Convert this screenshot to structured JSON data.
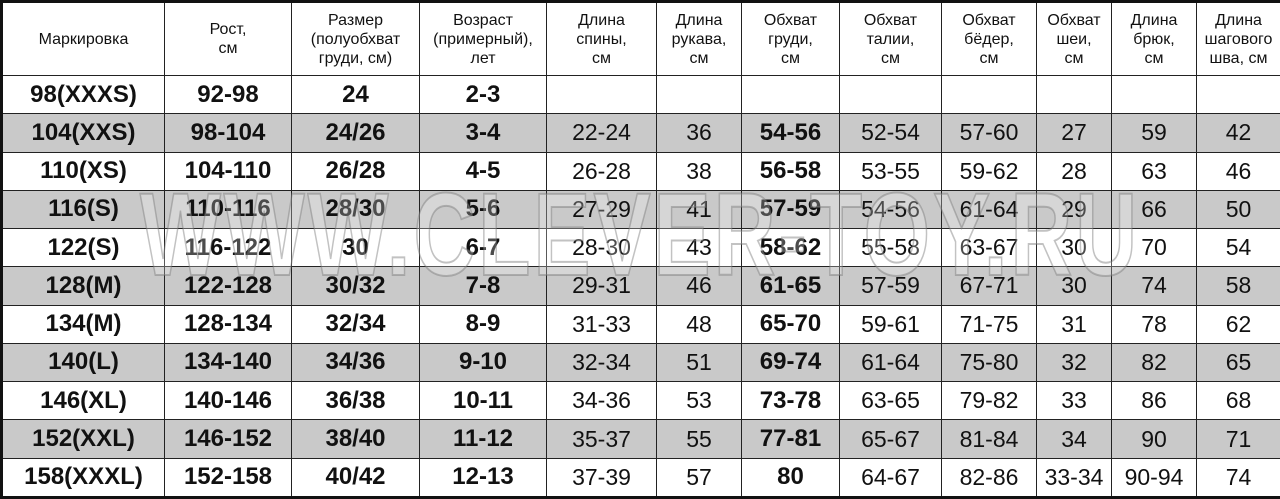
{
  "headers": [
    "Маркировка",
    "Рост,\nсм",
    "Размер\n(полуобхват\nгруди, см)",
    "Возраст\n(примерный),\nлет",
    "Длина\nспины,\nсм",
    "Длина\nрукава,\nсм",
    "Обхват\nгруди,\nсм",
    "Обхват\nталии,\nсм",
    "Обхват\nбёдер,\nсм",
    "Обхват\nшеи,\nсм",
    "Длина\nбрюк,\nсм",
    "Длина\nшагового\nшва, см"
  ],
  "rows": [
    [
      "98(XXXS)",
      "92-98",
      "24",
      "2-3",
      "",
      "",
      "",
      "",
      "",
      "",
      "",
      ""
    ],
    [
      "104(XXS)",
      "98-104",
      "24/26",
      "3-4",
      "22-24",
      "36",
      "54-56",
      "52-54",
      "57-60",
      "27",
      "59",
      "42"
    ],
    [
      "110(XS)",
      "104-110",
      "26/28",
      "4-5",
      "26-28",
      "38",
      "56-58",
      "53-55",
      "59-62",
      "28",
      "63",
      "46"
    ],
    [
      "116(S)",
      "110-116",
      "28/30",
      "5-6",
      "27-29",
      "41",
      "57-59",
      "54-56",
      "61-64",
      "29",
      "66",
      "50"
    ],
    [
      "122(S)",
      "116-122",
      "30",
      "6-7",
      "28-30",
      "43",
      "58-62",
      "55-58",
      "63-67",
      "30",
      "70",
      "54"
    ],
    [
      "128(M)",
      "122-128",
      "30/32",
      "7-8",
      "29-31",
      "46",
      "61-65",
      "57-59",
      "67-71",
      "30",
      "74",
      "58"
    ],
    [
      "134(M)",
      "128-134",
      "32/34",
      "8-9",
      "31-33",
      "48",
      "65-70",
      "59-61",
      "71-75",
      "31",
      "78",
      "62"
    ],
    [
      "140(L)",
      "134-140",
      "34/36",
      "9-10",
      "32-34",
      "51",
      "69-74",
      "61-64",
      "75-80",
      "32",
      "82",
      "65"
    ],
    [
      "146(XL)",
      "140-146",
      "36/38",
      "10-11",
      "34-36",
      "53",
      "73-78",
      "63-65",
      "79-82",
      "33",
      "86",
      "68"
    ],
    [
      "152(XXL)",
      "146-152",
      "38/40",
      "11-12",
      "35-37",
      "55",
      "77-81",
      "65-67",
      "81-84",
      "34",
      "90",
      "71"
    ],
    [
      "158(XXXL)",
      "152-158",
      "40/42",
      "12-13",
      "37-39",
      "57",
      "80",
      "64-67",
      "82-86",
      "33-34",
      "90-94",
      "74"
    ]
  ],
  "watermark": "WWW.CLEVER-TOY.RU",
  "colors": {
    "shaded_row": "#c9c9c9",
    "border": "#111111"
  }
}
